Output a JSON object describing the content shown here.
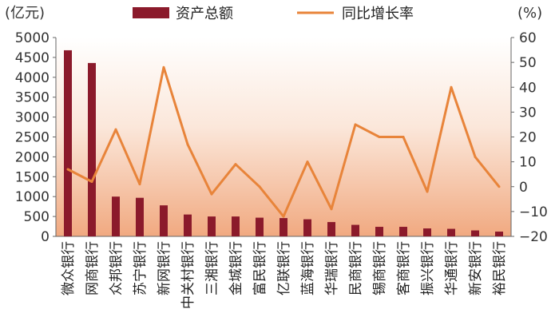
{
  "chart_data": {
    "type": "bar",
    "categories": [
      "微众银行",
      "网商银行",
      "众邦银行",
      "苏宁银行",
      "新网银行",
      "中关村银行",
      "三湘银行",
      "金城银行",
      "富民银行",
      "亿联银行",
      "蓝海银行",
      "华瑞银行",
      "民商银行",
      "锡商银行",
      "客商银行",
      "振兴银行",
      "华通银行",
      "新安银行",
      "裕民银行"
    ],
    "series": [
      {
        "name": "资产总额",
        "kind": "bar",
        "axis": "left",
        "color": "#8b1a2b",
        "values": [
          4680,
          4360,
          1000,
          970,
          780,
          550,
          500,
          500,
          470,
          460,
          430,
          360,
          290,
          240,
          240,
          200,
          190,
          150,
          120
        ]
      },
      {
        "name": "同比增长率",
        "kind": "line",
        "axis": "right",
        "color": "#e8843a",
        "values": [
          7,
          2,
          23,
          1,
          48,
          17,
          -3,
          9,
          0,
          -12,
          10,
          -9,
          25,
          20,
          20,
          -2,
          40,
          12,
          0
        ]
      }
    ],
    "yleft": {
      "unit": "(亿元)",
      "ylim": [
        0,
        5000
      ],
      "ticks": [
        0,
        500,
        1000,
        1500,
        2000,
        2500,
        3000,
        3500,
        4000,
        4500,
        5000
      ]
    },
    "yright": {
      "unit": "(%)",
      "ylim": [
        -20,
        60
      ],
      "ticks": [
        -20,
        -10,
        0,
        10,
        20,
        30,
        40,
        50,
        60
      ]
    },
    "legend_position": "top",
    "grid": false
  }
}
